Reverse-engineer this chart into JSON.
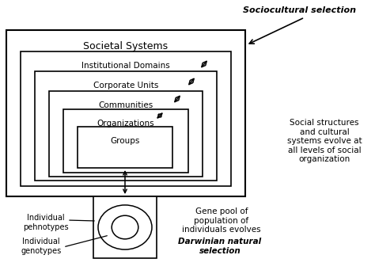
{
  "bg_color": "#ffffff",
  "title_socio": "Sociocultural selection",
  "title_societal": "Societal Systems",
  "labels": [
    "Institutional Domains",
    "Corporate Units",
    "Communities",
    "Organizations",
    "Groups"
  ],
  "right_text": "Social structures\nand cultural\nsystems evolve at\nall levels of social\norganization",
  "bottom_left_text1": "Individual\npehnotypes",
  "bottom_left_text2": "Individual\ngenotypes",
  "bottom_right_text1": "Gene pool of\npopulation of\nindividuals evolves",
  "bottom_right_text2": "Darwinian natural\nselection",
  "fig_width": 4.74,
  "fig_height": 3.46,
  "dpi": 100
}
